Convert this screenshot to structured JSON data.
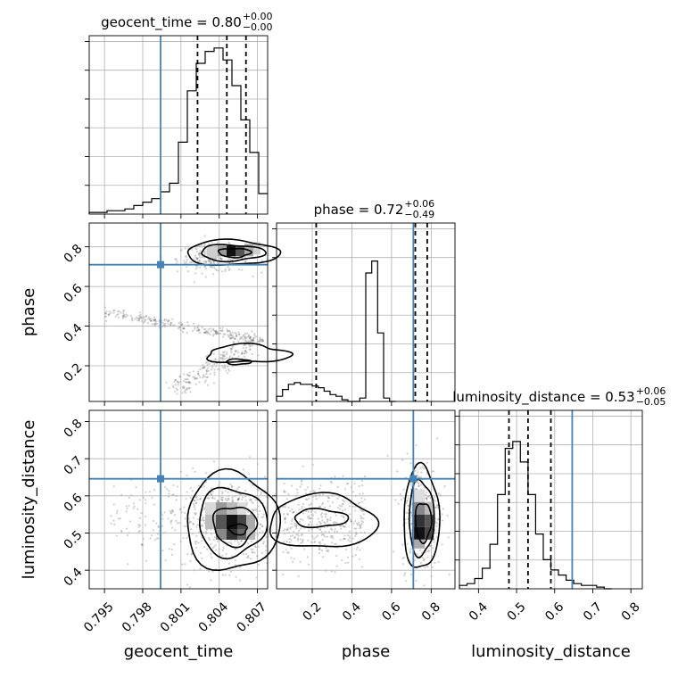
{
  "chart_data": {
    "type": "corner",
    "parameters": [
      "geocent_time",
      "phase",
      "luminosity_distance"
    ],
    "axis_labels": {
      "x": [
        "geocent_time",
        "phase",
        "luminosity_distance"
      ],
      "y": [
        "phase",
        "luminosity_distance"
      ]
    },
    "ranges": {
      "geocent_time": [
        0.7938,
        0.8078
      ],
      "phase": [
        0.02,
        0.92
      ],
      "luminosity_distance": [
        0.35,
        0.83
      ]
    },
    "ticks": {
      "geocent_time": [
        "0.795",
        "0.798",
        "0.801",
        "0.804",
        "0.807"
      ],
      "phase": [
        "0.2",
        "0.4",
        "0.6",
        "0.8"
      ],
      "luminosity_distance": [
        "0.4",
        "0.5",
        "0.6",
        "0.7",
        "0.8"
      ]
    },
    "truths": {
      "geocent_time": 0.7994,
      "phase": 0.71,
      "luminosity_distance": 0.646
    },
    "titles": [
      {
        "param": "geocent_time",
        "text": "geocent_time = 0.80",
        "plus": "+0.00",
        "minus": "−0.00"
      },
      {
        "param": "phase",
        "text": "phase = 0.72",
        "plus": "+0.06",
        "minus": "−0.49"
      },
      {
        "param": "luminosity_distance",
        "text": "luminosity_distance = 0.53",
        "plus": "+0.06",
        "minus": "−0.05"
      }
    ],
    "quantiles": {
      "geocent_time": [
        0.8023,
        0.8046,
        0.8061
      ],
      "phase": [
        0.22,
        0.72,
        0.78
      ],
      "luminosity_distance": [
        0.48,
        0.53,
        0.59
      ]
    },
    "histograms": {
      "geocent_time": {
        "edges_start": 0.7938,
        "bin_width": 0.0007,
        "counts": [
          0.01,
          0.01,
          0.02,
          0.02,
          0.03,
          0.05,
          0.07,
          0.09,
          0.13,
          0.18,
          0.42,
          0.72,
          0.88,
          0.95,
          0.97,
          0.9,
          0.75,
          0.55,
          0.36,
          0.12
        ]
      },
      "phase": {
        "edges_start": 0.02,
        "bin_width": 0.03,
        "counts": [
          0.03,
          0.07,
          0.1,
          0.11,
          0.1,
          0.1,
          0.09,
          0.08,
          0.06,
          0.04,
          0.03,
          0.01,
          0.0,
          0.0,
          0.02,
          0.75,
          0.82,
          0.4,
          0.02,
          0.0
        ]
      },
      "luminosity_distance": {
        "edges_start": 0.35,
        "bin_width": 0.02,
        "counts": [
          0.02,
          0.03,
          0.06,
          0.12,
          0.26,
          0.55,
          0.82,
          0.86,
          0.74,
          0.55,
          0.32,
          0.17,
          0.11,
          0.08,
          0.05,
          0.03,
          0.02,
          0.02,
          0.01,
          0.0
        ]
      }
    },
    "contour_regions": [
      {
        "panel": "phase_vs_geocent_time",
        "x": 0.805,
        "y": 0.77
      },
      {
        "panel": "phase_vs_geocent_time",
        "x": 0.806,
        "y": 0.26
      },
      {
        "panel": "luminosity_distance_vs_geocent_time",
        "x": 0.805,
        "y": 0.53
      },
      {
        "panel": "luminosity_distance_vs_phase",
        "x": 0.25,
        "y": 0.53
      },
      {
        "panel": "luminosity_distance_vs_phase",
        "x": 0.75,
        "y": 0.54
      }
    ],
    "grid": true
  }
}
